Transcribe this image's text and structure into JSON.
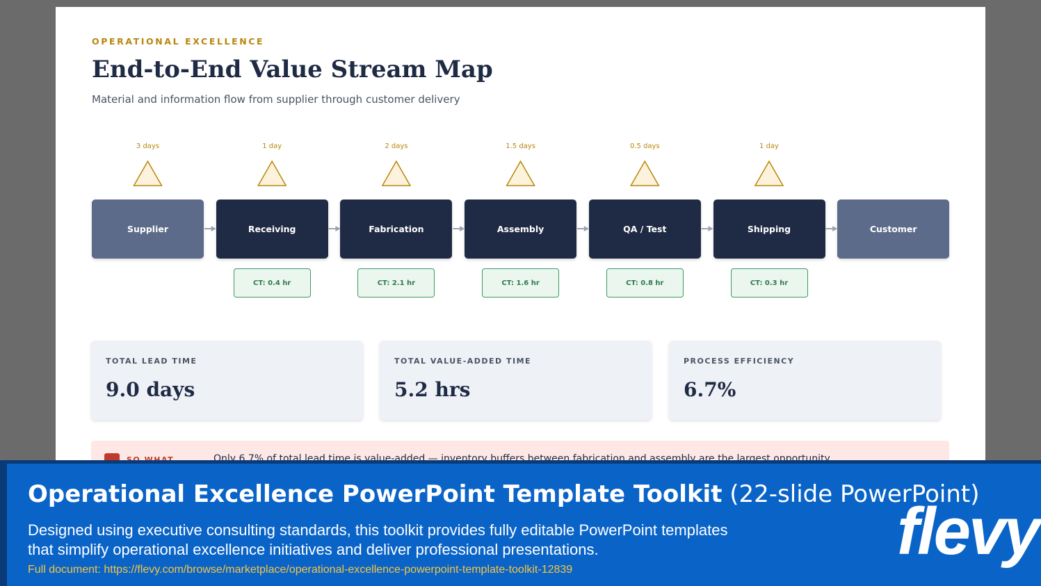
{
  "slide": {
    "eyebrow": "OPERATIONAL EXCELLENCE",
    "title": "End-to-End Value Stream Map",
    "subtitle": "Material and information flow from supplier through customer delivery",
    "stages": [
      {
        "name": "Supplier",
        "wait": "3 days"
      },
      {
        "name": "Receiving",
        "wait": "1 day",
        "ct": "CT: 0.4 hr"
      },
      {
        "name": "Fabrication",
        "wait": "2 days",
        "ct": "CT: 2.1 hr"
      },
      {
        "name": "Assembly",
        "wait": "1.5 days",
        "ct": "CT: 1.6 hr"
      },
      {
        "name": "QA / Test",
        "wait": "0.5 days",
        "ct": "CT: 0.8 hr"
      },
      {
        "name": "Shipping",
        "wait": "1 day",
        "ct": "CT: 0.3 hr"
      },
      {
        "name": "Customer"
      }
    ],
    "metrics": [
      {
        "label": "TOTAL LEAD TIME",
        "value": "9.0 days"
      },
      {
        "label": "TOTAL VALUE-ADDED TIME",
        "value": "5.2 hrs"
      },
      {
        "label": "PROCESS EFFICIENCY",
        "value": "6.7%"
      }
    ],
    "so_what": {
      "label": "SO WHAT",
      "text": "Only 6.7% of total lead time is value-added — inventory buffers between fabrication and assembly are the largest opportunity"
    }
  },
  "banner": {
    "title": "Operational Excellence PowerPoint Template Toolkit",
    "suffix": "(22-slide PowerPoint)",
    "description": "Designed using executive consulting standards, this toolkit provides fully editable PowerPoint templates that simplify operational excellence initiatives and deliver professional presentations.",
    "link": "Full document: https://flevy.com/browse/marketplace/operational-excellence-powerpoint-template-toolkit-12839",
    "logo": "flevy"
  }
}
